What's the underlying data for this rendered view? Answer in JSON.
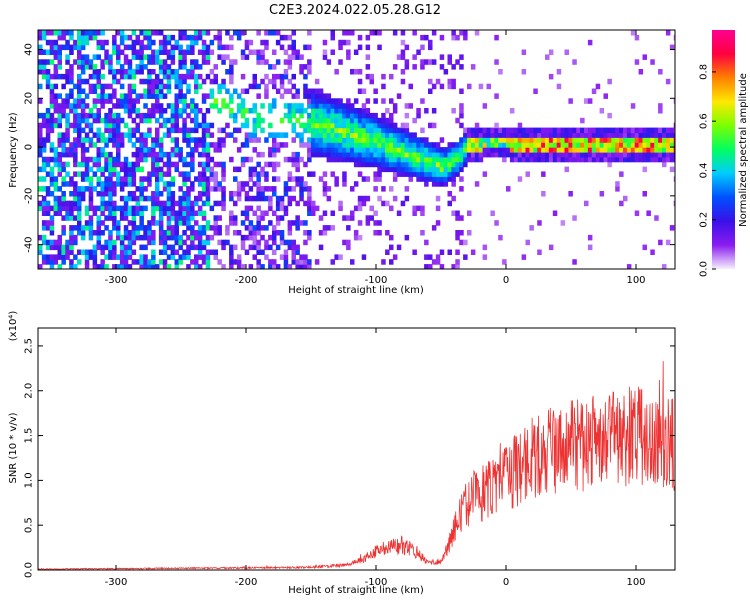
{
  "figure": {
    "title": "C2E3.2024.022.05.28.G12"
  },
  "chart_data": [
    {
      "type": "heatmap",
      "title": "C2E3.2024.022.05.28.G12",
      "xlabel": "Height of straight line (km)",
      "ylabel": "Frequency (Hz)",
      "xlim": [
        -360,
        130
      ],
      "ylim": [
        -50,
        48
      ],
      "xticks": [
        -300,
        -200,
        -100,
        0,
        100
      ],
      "xtick_labels": [
        "-300",
        "-200",
        "-100",
        "0",
        "100"
      ],
      "yticks": [
        -40,
        -20,
        0,
        20,
        40
      ],
      "ytick_labels": [
        "-40",
        "-20",
        "0",
        "20",
        "40"
      ],
      "colorbar": {
        "label": "Normalized spectral amplitude",
        "range": [
          0,
          0.97
        ],
        "ticks": [
          0.0,
          0.2,
          0.4,
          0.6,
          0.8
        ],
        "tick_labels": [
          "0.0",
          "0.2",
          "0.4",
          "0.6",
          "0.8"
        ],
        "colormap": [
          "#f6f0fc",
          "#8a1cf0",
          "#3a10e8",
          "#0050ff",
          "#00ccff",
          "#00ff60",
          "#7cff00",
          "#ffe800",
          "#ff8000",
          "#ff0040",
          "#ff0090"
        ]
      },
      "ridge": [
        {
          "x": -220,
          "y": 18
        },
        {
          "x": -200,
          "y": 12
        },
        {
          "x": -160,
          "y": 10
        },
        {
          "x": -130,
          "y": 6
        },
        {
          "x": -100,
          "y": 1
        },
        {
          "x": -70,
          "y": -5
        },
        {
          "x": -50,
          "y": -9
        },
        {
          "x": -40,
          "y": -6
        },
        {
          "x": -30,
          "y": 0
        },
        {
          "x": -20,
          "y": 1
        },
        {
          "x": 0,
          "y": 1
        },
        {
          "x": 50,
          "y": 0
        },
        {
          "x": 100,
          "y": 0
        },
        {
          "x": 130,
          "y": 1
        }
      ],
      "grid": false
    },
    {
      "type": "line",
      "xlabel": "Height of straight line (km)",
      "ylabel": "SNR (10 * v/v)",
      "y_multiplier": "(x10⁴)",
      "xlim": [
        -360,
        130
      ],
      "ylim": [
        0,
        2.7
      ],
      "xticks": [
        -300,
        -200,
        -100,
        0,
        100
      ],
      "xtick_labels": [
        "-300",
        "-200",
        "-100",
        "0",
        "100"
      ],
      "yticks": [
        0.0,
        0.5,
        1.0,
        1.5,
        2.0,
        2.5
      ],
      "ytick_labels": [
        "0.0",
        "0.5",
        "1.0",
        "1.5",
        "2.0",
        "2.5"
      ],
      "color": "#ee3333",
      "envelope": {
        "x": [
          -360,
          -250,
          -150,
          -120,
          -110,
          -100,
          -90,
          -80,
          -70,
          -60,
          -50,
          -45,
          -40,
          -35,
          -30,
          -20,
          -10,
          0,
          10,
          20,
          40,
          60,
          80,
          100,
          120,
          130
        ],
        "y": [
          0.01,
          0.02,
          0.03,
          0.06,
          0.12,
          0.2,
          0.25,
          0.28,
          0.22,
          0.08,
          0.1,
          0.25,
          0.45,
          0.6,
          0.75,
          0.85,
          0.9,
          1.0,
          1.15,
          1.25,
          1.35,
          1.4,
          1.45,
          1.5,
          1.45,
          1.4
        ]
      },
      "grid": false
    }
  ]
}
